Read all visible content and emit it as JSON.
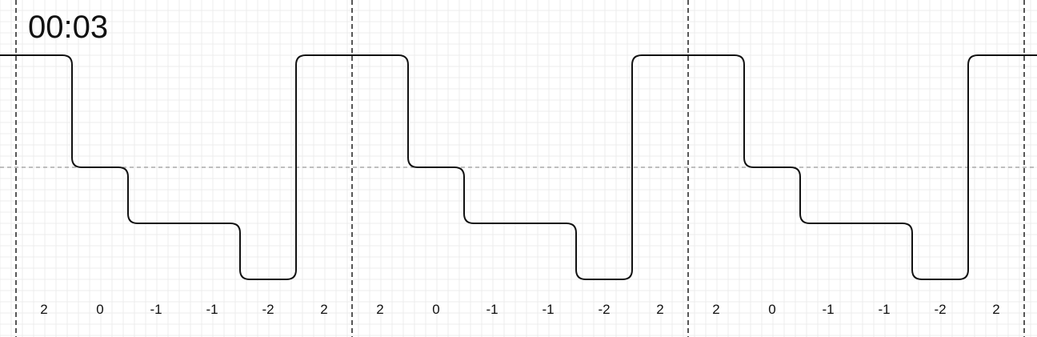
{
  "timer": "00:03",
  "chart_data": {
    "type": "line",
    "title": "",
    "xlabel": "",
    "ylabel": "",
    "ylim": [
      -2,
      2
    ],
    "grid": true,
    "symbols_per_period": 6,
    "periods": 3,
    "values": [
      2,
      0,
      -1,
      -1,
      -2,
      2,
      2,
      0,
      -1,
      -1,
      -2,
      2,
      2,
      0,
      -1,
      -1,
      -2,
      2
    ],
    "symbol_labels": [
      "2",
      "0",
      "-1",
      "-1",
      "-2",
      "2",
      "2",
      "0",
      "-1",
      "-1",
      "-2",
      "2",
      "2",
      "0",
      "-1",
      "-1",
      "-2",
      "2"
    ],
    "colors": {
      "signal": "#111111",
      "grid": "#ececec",
      "zero_line": "#999999",
      "period_divider": "#111111"
    }
  }
}
